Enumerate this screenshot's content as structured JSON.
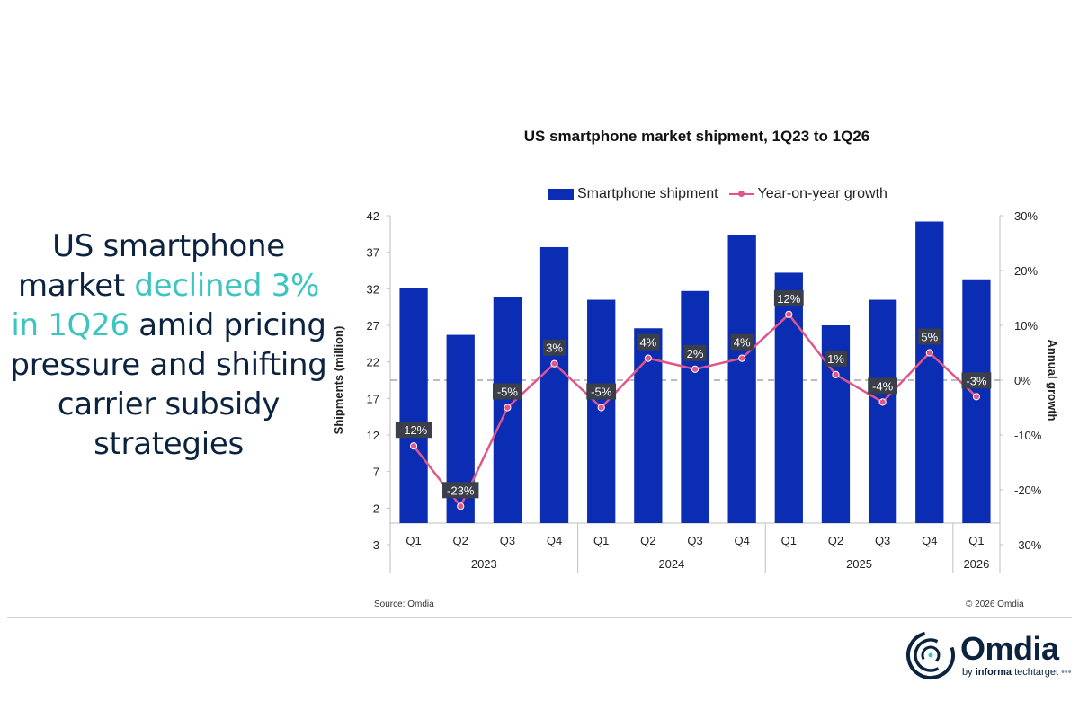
{
  "headline": {
    "part1": "US smartphone market ",
    "highlight": "declined 3% in 1Q26",
    "part2": " amid pricing pressure and shifting carrier subsidy strategies"
  },
  "chart_data": {
    "type": "bar",
    "title": "US smartphone market shipment, 1Q23 to 1Q26",
    "categories": [
      "Q1",
      "Q2",
      "Q3",
      "Q4",
      "Q1",
      "Q2",
      "Q3",
      "Q4",
      "Q1",
      "Q2",
      "Q3",
      "Q4",
      "Q1"
    ],
    "years": [
      {
        "label": "2023",
        "span": 4
      },
      {
        "label": "2024",
        "span": 4
      },
      {
        "label": "2025",
        "span": 4
      },
      {
        "label": "2026",
        "span": 1
      }
    ],
    "series": [
      {
        "name": "Smartphone shipment",
        "type": "bar",
        "axis": "left",
        "color": "#0a2db3",
        "values": [
          32.1,
          25.7,
          30.9,
          37.7,
          30.5,
          26.6,
          31.7,
          39.3,
          34.2,
          27.0,
          30.5,
          41.2,
          33.3
        ]
      },
      {
        "name": "Year-on-year growth",
        "type": "line",
        "axis": "right",
        "color": "#e0568a",
        "values": [
          -12,
          -23,
          -5,
          3,
          -5,
          4,
          2,
          4,
          12,
          1,
          -4,
          5,
          -3
        ],
        "labels": [
          "-12%",
          "-23%",
          "-5%",
          "3%",
          "-5%",
          "4%",
          "2%",
          "4%",
          "12%",
          "1%",
          "-4%",
          "5%",
          "-3%"
        ]
      }
    ],
    "ylabel": "Shipments (million)",
    "ylim": [
      -3,
      42
    ],
    "yticks": [
      "42",
      "37",
      "32",
      "27",
      "22",
      "17",
      "12",
      "7",
      "2",
      "-3"
    ],
    "y2label": "Annual growth",
    "y2lim": [
      -30,
      30
    ],
    "y2ticks": [
      "30%",
      "20%",
      "10%",
      "0%",
      "-10%",
      "-20%",
      "-30%"
    ],
    "legend_position": "top",
    "grid": false,
    "zero_reference_line": "dashed"
  },
  "source": "Source: Omdia",
  "copyright": "© 2026 Omdia",
  "brand": {
    "name": "Omdia",
    "byline_prefix": "by ",
    "byline_bold": "informa",
    "byline_suffix": " techtarget"
  },
  "colors": {
    "navy": "#0c2340",
    "accent_teal": "#3cc4c0",
    "bar_blue": "#0a2db3",
    "line_pink": "#e0568a",
    "label_box": "#3a3f4a"
  }
}
